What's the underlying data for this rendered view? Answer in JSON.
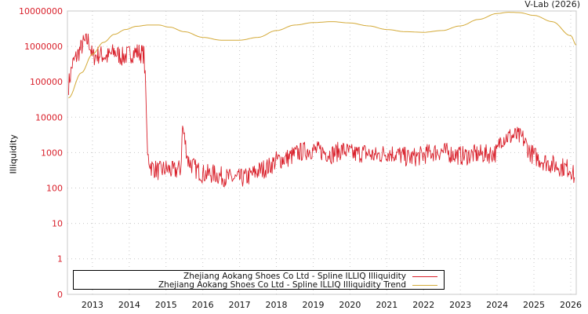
{
  "credit": "V-Lab (2026)",
  "chart_data": {
    "type": "line",
    "title": "",
    "xlabel": "",
    "ylabel": "Illiquidity",
    "yscale": "log",
    "ylim": [
      0,
      10000000
    ],
    "y_ticks": [
      "10000000",
      "1000000",
      "100000",
      "10000",
      "1000",
      "100",
      "10",
      "1",
      "0"
    ],
    "x_ticks": [
      "2013",
      "2014",
      "2015",
      "2016",
      "2017",
      "2018",
      "2019",
      "2020",
      "2021",
      "2022",
      "2023",
      "2024",
      "2025",
      "2026"
    ],
    "grid": true,
    "legend_position": "bottom-inside",
    "series": [
      {
        "name": "Zhejiang Aokang Shoes Co Ltd - Spline ILLIQ Illiquidity",
        "color": "#d9202b",
        "x": [
          2012.35,
          2012.45,
          2012.6,
          2012.75,
          2012.9,
          2013.0,
          2013.2,
          2013.4,
          2013.6,
          2013.8,
          2014.0,
          2014.2,
          2014.4,
          2014.45,
          2014.5,
          2014.6,
          2014.8,
          2015.0,
          2015.2,
          2015.4,
          2015.45,
          2015.6,
          2015.8,
          2016.0,
          2016.3,
          2016.6,
          2016.9,
          2017.2,
          2017.5,
          2017.8,
          2018.0,
          2018.3,
          2018.6,
          2018.9,
          2019.2,
          2019.5,
          2019.8,
          2020.1,
          2020.4,
          2020.7,
          2021.0,
          2021.3,
          2021.6,
          2021.9,
          2022.2,
          2022.5,
          2022.8,
          2023.1,
          2023.4,
          2023.7,
          2024.0,
          2024.1,
          2024.3,
          2024.5,
          2024.7,
          2024.9,
          2025.1,
          2025.4,
          2025.7,
          2026.0,
          2026.1
        ],
        "values": [
          80000,
          300000,
          600000,
          1200000,
          1500000,
          500000,
          600000,
          500000,
          700000,
          500000,
          600000,
          700000,
          600000,
          50000,
          800,
          400,
          300,
          350,
          300,
          350,
          5500,
          600,
          350,
          250,
          250,
          200,
          180,
          200,
          300,
          400,
          600,
          700,
          1000,
          1200,
          1100,
          900,
          1200,
          900,
          1000,
          800,
          1000,
          900,
          700,
          800,
          1000,
          1100,
          900,
          800,
          900,
          900,
          1000,
          2500,
          2800,
          3000,
          2500,
          1000,
          700,
          500,
          400,
          350,
          200
        ]
      },
      {
        "name": "Zhejiang Aokang Shoes Co Ltd - Spline ILLIQ Illiquidity Trend",
        "color": "#d4aa38",
        "x": [
          2012.35,
          2012.7,
          2013.0,
          2013.3,
          2013.6,
          2013.9,
          2014.2,
          2014.5,
          2014.8,
          2015.1,
          2015.5,
          2016.0,
          2016.5,
          2017.0,
          2017.5,
          2018.0,
          2018.5,
          2019.0,
          2019.5,
          2020.0,
          2020.5,
          2021.0,
          2021.5,
          2022.0,
          2022.5,
          2023.0,
          2023.5,
          2024.0,
          2024.3,
          2024.6,
          2025.0,
          2025.5,
          2026.0,
          2026.15
        ],
        "values": [
          35000,
          180000,
          600000,
          1300000,
          2200000,
          3000000,
          3700000,
          4000000,
          4000000,
          3500000,
          2600000,
          1800000,
          1500000,
          1500000,
          1800000,
          2800000,
          4000000,
          4700000,
          5000000,
          4600000,
          3800000,
          3000000,
          2600000,
          2500000,
          2800000,
          3800000,
          5800000,
          8500000,
          9200000,
          9000000,
          7500000,
          5000000,
          2000000,
          1100000
        ]
      }
    ]
  },
  "legend": {
    "items": [
      {
        "label": "Zhejiang Aokang Shoes Co Ltd - Spline ILLIQ Illiquidity",
        "color": "#d9202b"
      },
      {
        "label": "Zhejiang Aokang Shoes Co Ltd - Spline ILLIQ Illiquidity Trend",
        "color": "#d4aa38"
      }
    ]
  }
}
